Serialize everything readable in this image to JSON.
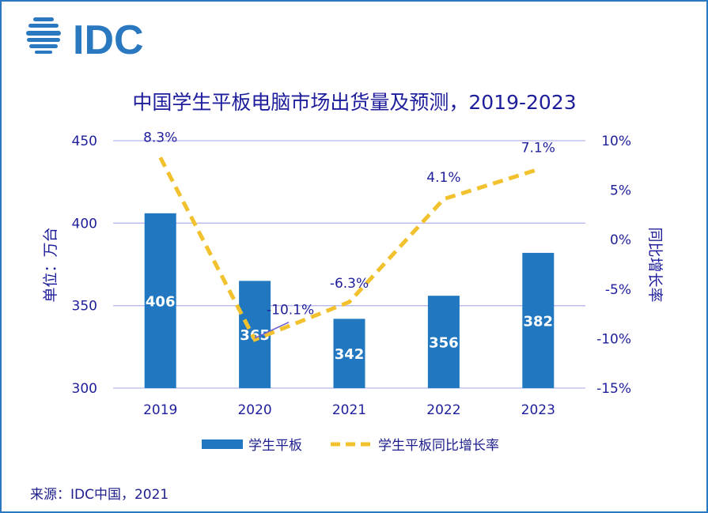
{
  "logo": {
    "text": "IDC",
    "color": "#2a78c0"
  },
  "source": "来源：IDC中国，2021",
  "chart_data": {
    "type": "bar+line",
    "title": "中国学生平板电脑市场出货量及预测，2019-2023",
    "categories": [
      "2019",
      "2020",
      "2021",
      "2022",
      "2023"
    ],
    "ylabel": "单位：万台",
    "y2label": "同比增长率",
    "ylim": [
      300,
      450
    ],
    "yticks": [
      "300",
      "350",
      "400",
      "450"
    ],
    "y2lim": [
      -15,
      10
    ],
    "y2ticks": [
      "-15%",
      "-10%",
      "-5%",
      "0%",
      "5%",
      "10%"
    ],
    "grid": true,
    "legend_position": "bottom",
    "series": [
      {
        "name": "学生平板",
        "type": "bar",
        "color": "#2178c0",
        "values": [
          406,
          365,
          342,
          356,
          382
        ],
        "labels": [
          "406",
          "365",
          "342",
          "356",
          "382"
        ]
      },
      {
        "name": "学生平板同比增长率",
        "type": "line",
        "style": "dashed",
        "axis": "right",
        "color": "#f2c12e",
        "values": [
          8.3,
          -10.1,
          -6.3,
          4.1,
          7.1
        ],
        "labels": [
          "8.3%",
          "-10.1%",
          "-6.3%",
          "4.1%",
          "7.1%"
        ]
      }
    ]
  }
}
